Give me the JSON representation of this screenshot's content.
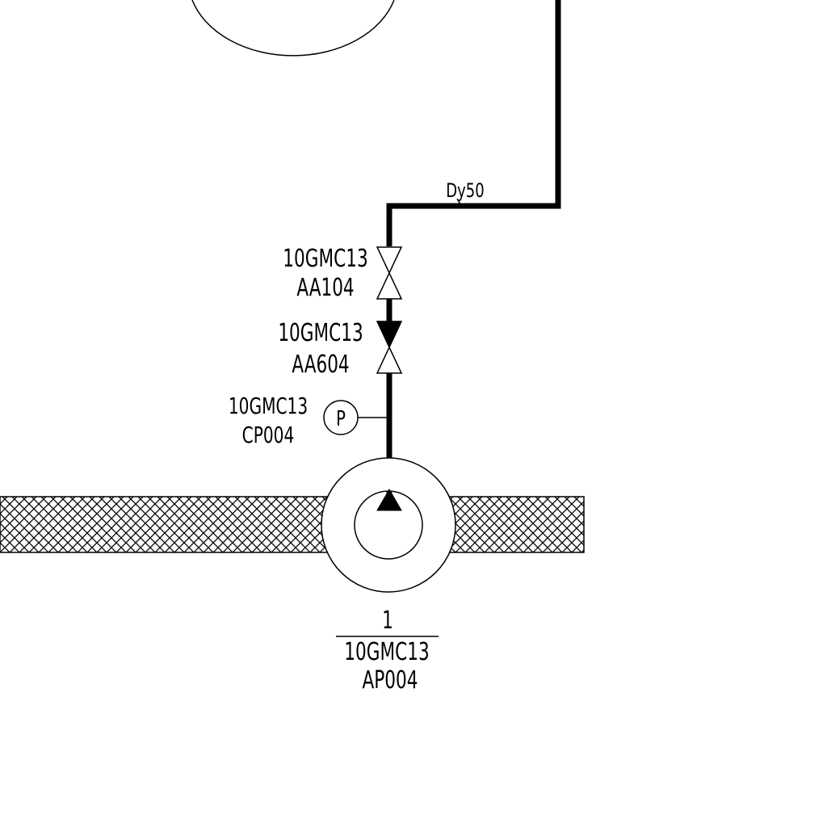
{
  "pipe": {
    "size_label": "Dy50"
  },
  "valves": [
    {
      "line1": "10GMC13",
      "line2": "AA104"
    },
    {
      "line1": "10GMC13",
      "line2": "AA604"
    }
  ],
  "instrument": {
    "symbol": "P",
    "line1": "10GMC13",
    "line2": "CP004"
  },
  "pump": {
    "number": "1",
    "line1": "10GMC13",
    "line2": "AP004"
  },
  "colors": {
    "line": "#000000",
    "background": "#ffffff"
  }
}
